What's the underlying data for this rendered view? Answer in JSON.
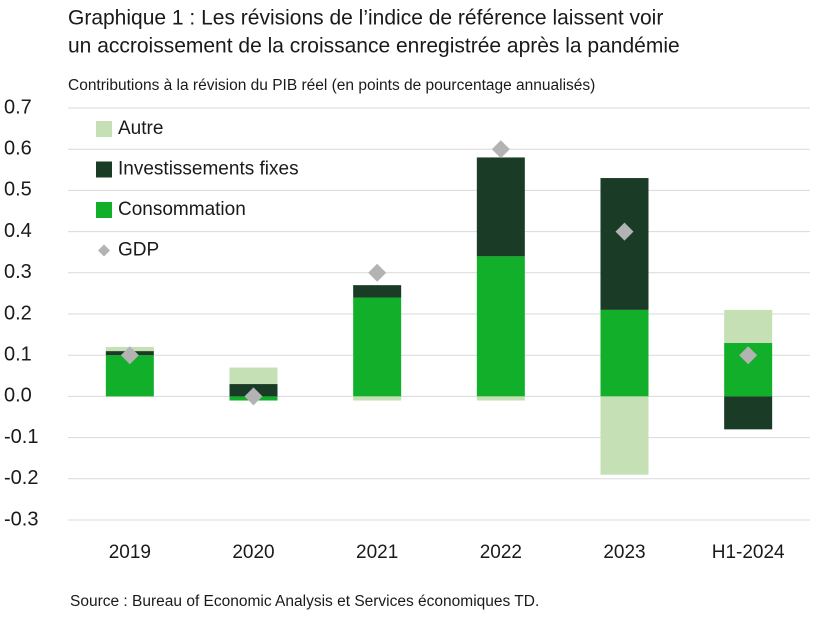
{
  "chart_data": {
    "type": "bar",
    "stacked": true,
    "title": [
      "Graphique 1 : Les révisions de l’indice de référence laissent voir",
      "un accroissement de la croissance enregistrée après la pandémie"
    ],
    "subtitle": "Contributions à la révision du PIB réel (en points de pourcentage annualisés)",
    "source": "Source : Bureau of Economic Analysis et Services économiques TD.",
    "categories": [
      "2019",
      "2020",
      "2021",
      "2022",
      "2023",
      "H1-2024"
    ],
    "series": [
      {
        "name": "Autre",
        "color": "#c5e0b4",
        "values": [
          0.01,
          0.04,
          -0.01,
          -0.01,
          -0.19,
          0.08
        ]
      },
      {
        "name": "Investissements fixes",
        "color": "#1a3c26",
        "values": [
          0.01,
          0.03,
          0.03,
          0.24,
          0.32,
          -0.08
        ]
      },
      {
        "name": "Consommation",
        "color": "#12b02a",
        "values": [
          0.1,
          -0.01,
          0.24,
          0.34,
          0.21,
          0.13
        ]
      },
      {
        "name": "GDP",
        "type": "scatter",
        "color": "#b3b3b3",
        "values": [
          0.1,
          0,
          0.3,
          0.6,
          0.4,
          0.1
        ]
      }
    ],
    "ylim": [
      -0.3,
      0.7
    ],
    "yticks": [
      -0.3,
      -0.2,
      -0.1,
      {
        "value": 0,
        "label": "0.0"
      },
      0.1,
      0.2,
      0.3,
      0.4,
      0.5,
      0.6,
      0.7
    ],
    "grid": true,
    "legend": "top-left"
  }
}
